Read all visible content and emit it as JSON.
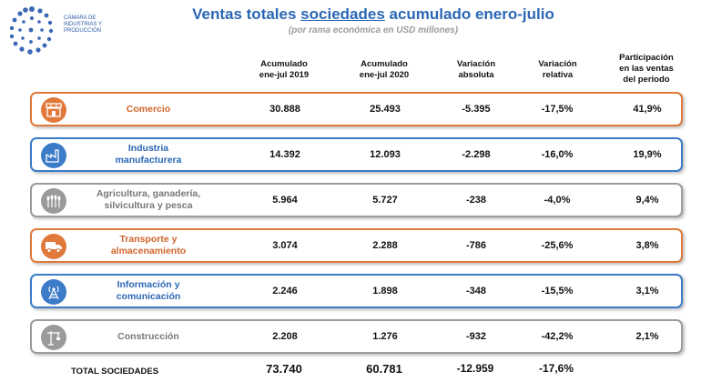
{
  "logo": {
    "line1": "CÁMARA DE",
    "line2": "INDUSTRIAS Y",
    "line3": "PRODUCCIÓN"
  },
  "title": {
    "prefix": "Ventas totales ",
    "underlined": "sociedades",
    "suffix": " acumulado enero-julio"
  },
  "subtitle": "(por rama económica en USD millones)",
  "headers": {
    "col1": [
      "Acumulado",
      "ene-jul 2019"
    ],
    "col2": [
      "Acumulado",
      "ene-jul 2020"
    ],
    "col3": [
      "Variación",
      "absoluta"
    ],
    "col4": [
      "Variación",
      "relativa"
    ],
    "col5": [
      "Participación",
      "en las ventas",
      "del periodo"
    ]
  },
  "rows": [
    {
      "label": [
        "Comercio"
      ],
      "icon": "shop-icon",
      "color": "orange",
      "v2019": "30.888",
      "v2020": "25.493",
      "abs": "-5.395",
      "rel": "-17,5%",
      "share": "41,9%"
    },
    {
      "label": [
        "Industria",
        "manufacturera"
      ],
      "icon": "factory-icon",
      "color": "blue",
      "v2019": "14.392",
      "v2020": "12.093",
      "abs": "-2.298",
      "rel": "-16,0%",
      "share": "19,9%"
    },
    {
      "label": [
        "Agricultura, ganadería,",
        "silvicultura y pesca"
      ],
      "icon": "wheat-icon",
      "color": "gray",
      "v2019": "5.964",
      "v2020": "5.727",
      "abs": "-238",
      "rel": "-4,0%",
      "share": "9,4%"
    },
    {
      "label": [
        "Transporte y",
        "almacenamiento"
      ],
      "icon": "truck-icon",
      "color": "orange",
      "v2019": "3.074",
      "v2020": "2.288",
      "abs": "-786",
      "rel": "-25,6%",
      "share": "3,8%"
    },
    {
      "label": [
        "Información y",
        "comunicación"
      ],
      "icon": "antenna-icon",
      "color": "blue",
      "v2019": "2.246",
      "v2020": "1.898",
      "abs": "-348",
      "rel": "-15,5%",
      "share": "3,1%"
    },
    {
      "label": [
        "Construcción"
      ],
      "icon": "crane-icon",
      "color": "gray",
      "v2019": "2.208",
      "v2020": "1.276",
      "abs": "-932",
      "rel": "-42,2%",
      "share": "2,1%"
    }
  ],
  "total": {
    "label": "TOTAL SOCIEDADES",
    "v2019": "73.740",
    "v2020": "60.781",
    "abs": "-12.959",
    "rel": "-17,6%"
  },
  "colors": {
    "orange": "#e0793a",
    "blue": "#3b7bc8",
    "gray": "#9c9c9c",
    "title": "#2b67b5"
  }
}
